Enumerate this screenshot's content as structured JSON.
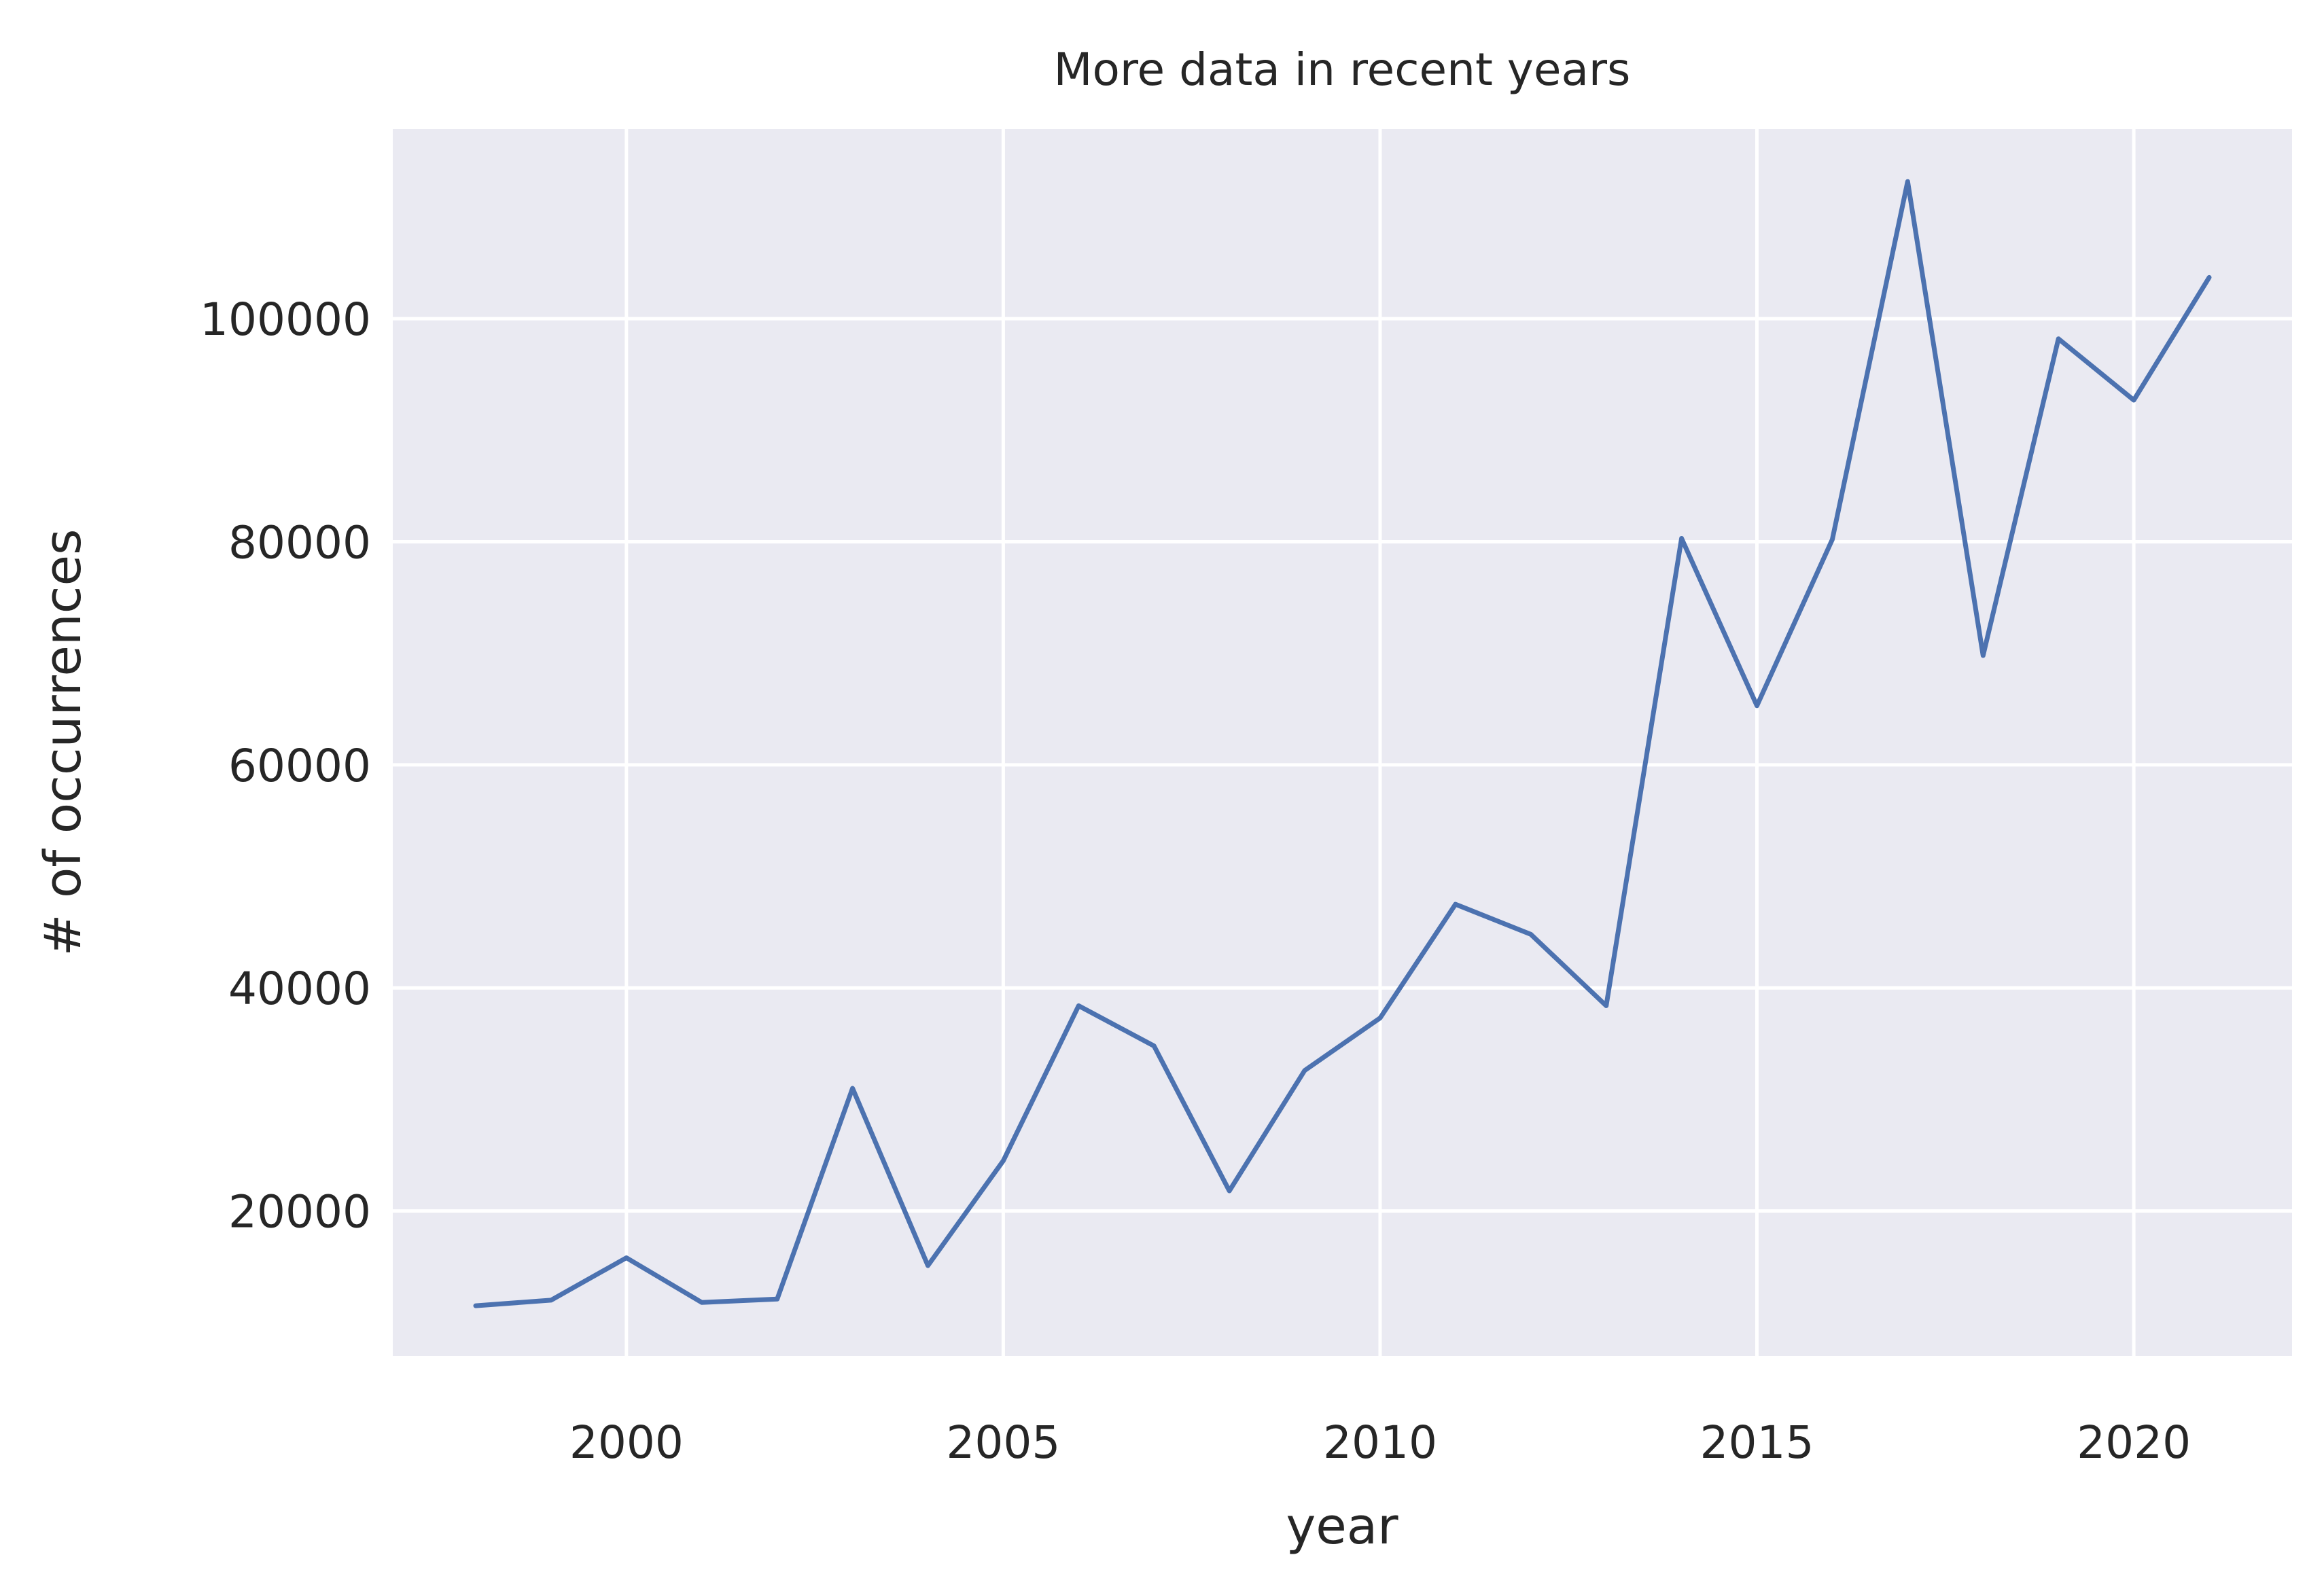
{
  "chart_data": {
    "type": "line",
    "title": "More data in recent years",
    "xlabel": "year",
    "ylabel": "# of occurrences",
    "xlim": [
      1996.9,
      2022.1
    ],
    "ylim": [
      7000,
      117000
    ],
    "xticks": [
      2000,
      2005,
      2010,
      2015,
      2020
    ],
    "yticks": [
      20000,
      40000,
      60000,
      80000,
      100000
    ],
    "grid": true,
    "colors": {
      "background": "#EAEAF2",
      "grid": "#FFFFFF",
      "line": "#4C72B0",
      "text": "#262626"
    },
    "series": [
      {
        "x": [
          1998,
          1999,
          2000,
          2001,
          2002,
          2003,
          2004,
          2005,
          2006,
          2007,
          2008,
          2009,
          2010,
          2011,
          2012,
          2013,
          2014,
          2015,
          2016,
          2017,
          2018,
          2019,
          2020,
          2021
        ],
        "values": [
          11500,
          12000,
          15800,
          11800,
          12100,
          31000,
          15100,
          24500,
          38400,
          34800,
          21800,
          32600,
          37300,
          47500,
          44800,
          38400,
          80300,
          65300,
          80200,
          112300,
          69800,
          98200,
          92700,
          103700
        ]
      }
    ]
  }
}
